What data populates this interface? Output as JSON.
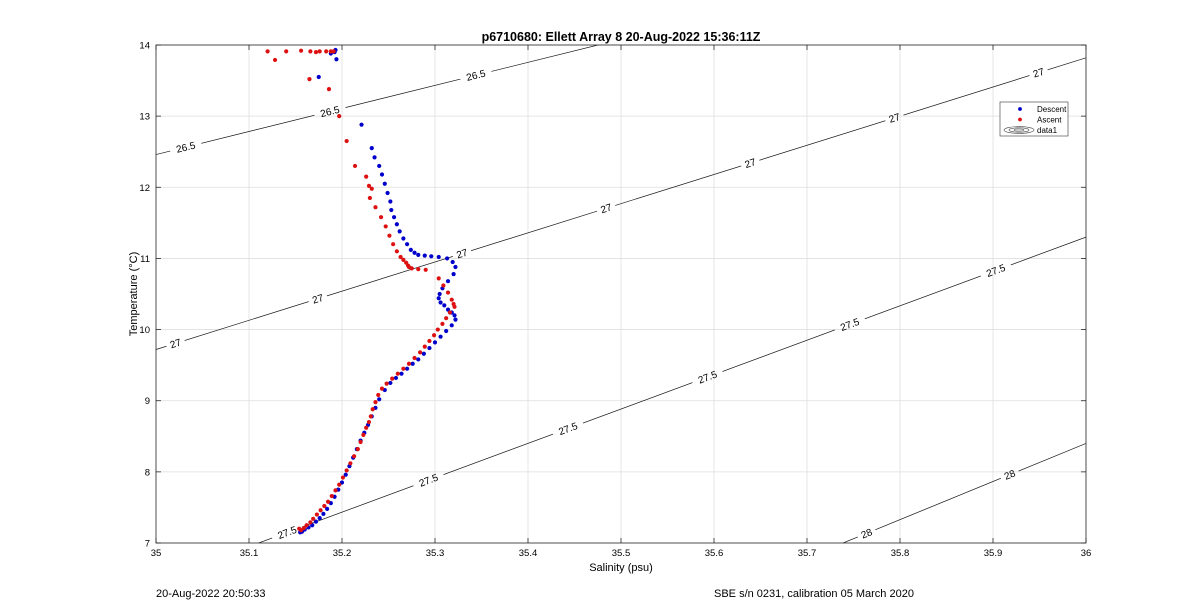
{
  "footer": {
    "timestamp": "20-Aug-2022 20:50:33",
    "calibration": "SBE s/n 0231, calibration 05 March 2020"
  },
  "chart_data": {
    "type": "scatter",
    "title": "p6710680: Ellett Array 8 20-Aug-2022 15:36:11Z",
    "xlabel": "Salinity (psu)",
    "ylabel": "Temperature (°C)",
    "xlim": [
      35,
      36
    ],
    "ylim": [
      7,
      14
    ],
    "x_ticks": [
      "35",
      "35.1",
      "35.2",
      "35.3",
      "35.4",
      "35.5",
      "35.6",
      "35.7",
      "35.8",
      "35.9",
      "36"
    ],
    "y_ticks": [
      "7",
      "8",
      "9",
      "10",
      "11",
      "12",
      "13",
      "14"
    ],
    "grid": true,
    "legend_position": "top-right",
    "legend": [
      "Descent",
      "Ascent",
      "data1"
    ],
    "series": [
      {
        "name": "Descent",
        "color": "#0000cc",
        "x": [
          35.193,
          35.192,
          35.194,
          35.188,
          35.175,
          35.221,
          35.232,
          35.235,
          35.24,
          35.243,
          35.246,
          35.249,
          35.252,
          35.253,
          35.256,
          35.259,
          35.262,
          35.266,
          35.27,
          35.274,
          35.278,
          35.282,
          35.289,
          35.296,
          35.304,
          35.313,
          35.319,
          35.322,
          35.32,
          35.314,
          35.308,
          35.305,
          35.304,
          35.306,
          35.31,
          35.314,
          35.318,
          35.321,
          35.322,
          35.318,
          35.312,
          35.306,
          35.3,
          35.294,
          35.288,
          35.282,
          35.276,
          35.27,
          35.264,
          35.258,
          35.252,
          35.246,
          35.24,
          35.236,
          35.232,
          35.228,
          35.224,
          35.22,
          35.216,
          35.212,
          35.208,
          35.204,
          35.2,
          35.196,
          35.192,
          35.188,
          35.184,
          35.18,
          35.176,
          35.172,
          35.168,
          35.164,
          35.16,
          35.157,
          35.155
        ],
        "y": [
          13.93,
          13.9,
          13.8,
          13.88,
          13.55,
          12.88,
          12.55,
          12.42,
          12.3,
          12.18,
          12.05,
          11.92,
          11.8,
          11.68,
          11.58,
          11.48,
          11.38,
          11.28,
          11.2,
          11.12,
          11.08,
          11.05,
          11.04,
          11.03,
          11.02,
          11.0,
          10.95,
          10.88,
          10.78,
          10.68,
          10.58,
          10.5,
          10.44,
          10.38,
          10.34,
          10.28,
          10.24,
          10.2,
          10.14,
          10.06,
          9.98,
          9.9,
          9.82,
          9.74,
          9.66,
          9.58,
          9.52,
          9.45,
          9.38,
          9.32,
          9.25,
          9.15,
          9.02,
          8.9,
          8.78,
          8.66,
          8.55,
          8.44,
          8.32,
          8.2,
          8.08,
          7.96,
          7.85,
          7.75,
          7.65,
          7.56,
          7.48,
          7.41,
          7.35,
          7.3,
          7.25,
          7.22,
          7.19,
          7.16,
          7.15
        ]
      },
      {
        "name": "Ascent",
        "color": "#dd1111",
        "x": [
          35.12,
          35.128,
          35.14,
          35.156,
          35.166,
          35.176,
          35.183,
          35.188,
          35.191,
          35.172,
          35.165,
          35.186,
          35.197,
          35.205,
          35.214,
          35.226,
          35.229,
          35.232,
          35.23,
          35.236,
          35.242,
          35.247,
          35.251,
          35.255,
          35.259,
          35.263,
          35.266,
          35.269,
          35.271,
          35.272,
          35.275,
          35.282,
          35.29,
          35.304,
          35.309,
          35.314,
          35.318,
          35.32,
          35.321,
          35.316,
          35.312,
          35.308,
          35.303,
          35.299,
          35.294,
          35.289,
          35.284,
          35.278,
          35.272,
          35.266,
          35.26,
          35.254,
          35.248,
          35.243,
          35.239,
          35.236,
          35.233,
          35.231,
          35.229,
          35.226,
          35.223,
          35.22,
          35.217,
          35.213,
          35.209,
          35.205,
          35.201,
          35.197,
          35.193,
          35.189,
          35.185,
          35.181,
          35.177,
          35.173,
          35.169,
          35.166,
          35.162,
          35.159,
          35.156,
          35.154
        ],
        "y": [
          13.91,
          13.79,
          13.91,
          13.92,
          13.91,
          13.91,
          13.91,
          13.91,
          13.91,
          13.9,
          13.52,
          13.38,
          13.0,
          12.65,
          12.3,
          12.15,
          12.02,
          11.98,
          11.85,
          11.72,
          11.58,
          11.45,
          11.32,
          11.2,
          11.1,
          11.02,
          10.98,
          10.94,
          10.9,
          10.88,
          10.86,
          10.85,
          10.84,
          10.72,
          10.62,
          10.52,
          10.42,
          10.36,
          10.32,
          10.24,
          10.16,
          10.08,
          10.0,
          9.92,
          9.84,
          9.76,
          9.68,
          9.6,
          9.52,
          9.45,
          9.38,
          9.31,
          9.24,
          9.17,
          9.08,
          8.98,
          8.88,
          8.78,
          8.7,
          8.62,
          8.52,
          8.42,
          8.32,
          8.22,
          8.12,
          8.02,
          7.92,
          7.82,
          7.74,
          7.66,
          7.58,
          7.52,
          7.46,
          7.4,
          7.34,
          7.29,
          7.25,
          7.21,
          7.18,
          7.2
        ]
      }
    ],
    "contours": [
      {
        "level": "26.5",
        "x": [
          35,
          36
        ],
        "y": [
          12.46,
          15.7
        ],
        "labels": [
          {
            "text": "26.5",
            "x": 35.032
          },
          {
            "text": "26.5",
            "x": 35.187
          },
          {
            "text": "26.5",
            "x": 35.344
          }
        ]
      },
      {
        "level": "27",
        "x": [
          35,
          36
        ],
        "y": [
          9.72,
          13.82
        ],
        "labels": [
          {
            "text": "27",
            "x": 35.021
          },
          {
            "text": "27",
            "x": 35.174
          },
          {
            "text": "27",
            "x": 35.329
          },
          {
            "text": "27",
            "x": 35.484
          },
          {
            "text": "27",
            "x": 35.639
          },
          {
            "text": "27",
            "x": 35.794
          },
          {
            "text": "27",
            "x": 35.949
          }
        ]
      },
      {
        "level": "27.5",
        "x": [
          35.1,
          36
        ],
        "y": [
          6.95,
          11.3
        ],
        "labels": [
          {
            "text": "27.5",
            "x": 35.141
          },
          {
            "text": "27.5",
            "x": 35.293
          },
          {
            "text": "27.5",
            "x": 35.443
          },
          {
            "text": "27.5",
            "x": 35.593
          },
          {
            "text": "27.5",
            "x": 35.746
          },
          {
            "text": "27.5",
            "x": 35.903
          }
        ]
      },
      {
        "level": "28",
        "x": [
          35.735,
          36
        ],
        "y": [
          6.98,
          8.4
        ],
        "labels": [
          {
            "text": "28",
            "x": 35.764
          },
          {
            "text": "28",
            "x": 35.918
          }
        ]
      }
    ]
  }
}
